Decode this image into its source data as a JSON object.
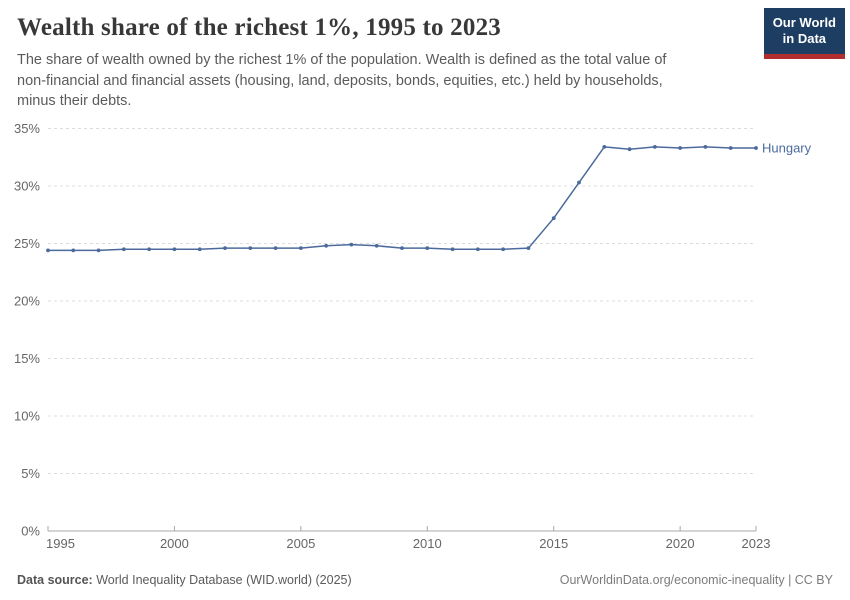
{
  "header": {
    "title": "Wealth share of the richest 1%, 1995 to 2023",
    "subtitle": "The share of wealth owned by the richest 1% of the population. Wealth is defined as the total value of non-financial and financial assets (housing, land, deposits, bonds, equities, etc.) held by households, minus their debts.",
    "logo_line1": "Our World",
    "logo_line2": "in Data",
    "logo_bg_color": "#1d3d63",
    "logo_accent_color": "#b02e2e"
  },
  "footer": {
    "source_label": "Data source:",
    "source_text": "World Inequality Database (WID.world) (2025)",
    "credit": "OurWorldinData.org/economic-inequality | CC BY"
  },
  "chart_data": {
    "type": "line",
    "title": "Wealth share of the richest 1%, 1995 to 2023",
    "entity_label": "Hungary",
    "x": [
      1995,
      1996,
      1997,
      1998,
      1999,
      2000,
      2001,
      2002,
      2003,
      2004,
      2005,
      2006,
      2007,
      2008,
      2009,
      2010,
      2011,
      2012,
      2013,
      2014,
      2015,
      2016,
      2017,
      2018,
      2019,
      2020,
      2021,
      2022,
      2023
    ],
    "values": [
      24.4,
      24.4,
      24.4,
      24.5,
      24.5,
      24.5,
      24.5,
      24.6,
      24.6,
      24.6,
      24.6,
      24.8,
      24.9,
      24.8,
      24.6,
      24.6,
      24.5,
      24.5,
      24.5,
      24.6,
      27.2,
      30.3,
      33.4,
      33.2,
      33.4,
      33.3,
      33.4,
      33.3,
      33.3
    ],
    "unit": "%",
    "xlim": [
      1995,
      2023
    ],
    "ylim": [
      0,
      35
    ],
    "x_ticks": [
      1995,
      2000,
      2005,
      2010,
      2015,
      2020,
      2023
    ],
    "x_tick_labels": [
      "1995",
      "2000",
      "2005",
      "2010",
      "2015",
      "2020",
      "2023"
    ],
    "y_ticks": [
      0,
      5,
      10,
      15,
      20,
      25,
      30,
      35
    ],
    "y_tick_labels": [
      "0%",
      "5%",
      "10%",
      "15%",
      "20%",
      "25%",
      "30%",
      "35%"
    ],
    "grid": "dashed-horizontal",
    "legend_position": "end-of-line-label",
    "line_color": "#4c6a9c",
    "grid_color": "#dddddd",
    "axis_color": "#a8a8a8",
    "tick_label_color": "#666666"
  }
}
